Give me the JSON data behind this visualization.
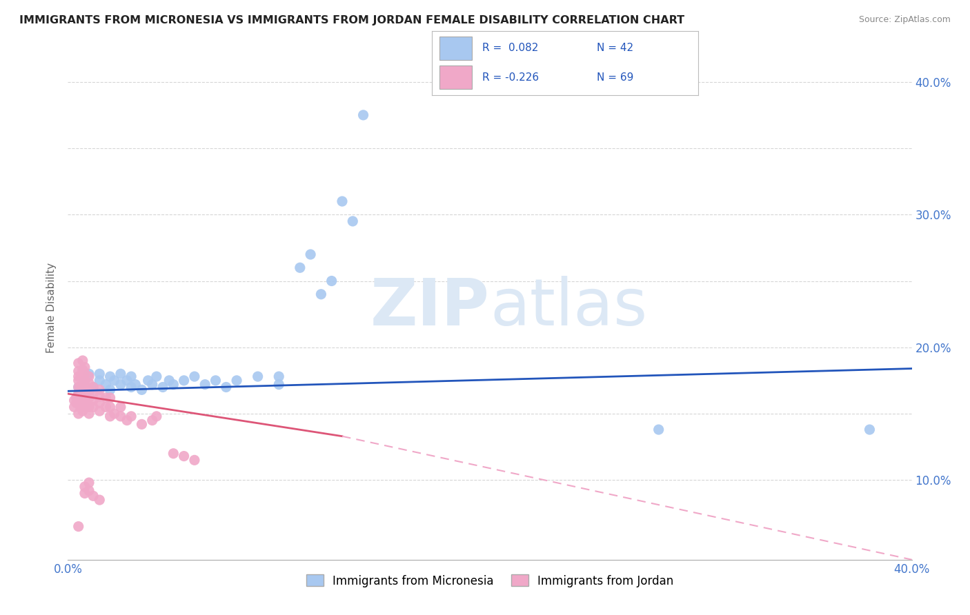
{
  "title": "IMMIGRANTS FROM MICRONESIA VS IMMIGRANTS FROM JORDAN FEMALE DISABILITY CORRELATION CHART",
  "source": "Source: ZipAtlas.com",
  "ylabel": "Female Disability",
  "xlim": [
    0.0,
    0.4
  ],
  "ylim": [
    0.04,
    0.42
  ],
  "xticks": [
    0.0,
    0.05,
    0.1,
    0.15,
    0.2,
    0.25,
    0.3,
    0.35,
    0.4
  ],
  "yticks": [
    0.1,
    0.15,
    0.2,
    0.25,
    0.3,
    0.35,
    0.4
  ],
  "blue_color": "#a8c8f0",
  "pink_color": "#f0a8c8",
  "blue_line_color": "#2255bb",
  "pink_line_color": "#dd5577",
  "pink_dash_color": "#f0a8c8",
  "blue_scatter": [
    [
      0.005,
      0.17
    ],
    [
      0.008,
      0.175
    ],
    [
      0.01,
      0.165
    ],
    [
      0.01,
      0.18
    ],
    [
      0.012,
      0.17
    ],
    [
      0.015,
      0.175
    ],
    [
      0.015,
      0.18
    ],
    [
      0.018,
      0.172
    ],
    [
      0.02,
      0.168
    ],
    [
      0.02,
      0.178
    ],
    [
      0.022,
      0.175
    ],
    [
      0.025,
      0.172
    ],
    [
      0.025,
      0.18
    ],
    [
      0.028,
      0.175
    ],
    [
      0.03,
      0.17
    ],
    [
      0.03,
      0.178
    ],
    [
      0.032,
      0.172
    ],
    [
      0.035,
      0.168
    ],
    [
      0.038,
      0.175
    ],
    [
      0.04,
      0.172
    ],
    [
      0.042,
      0.178
    ],
    [
      0.045,
      0.17
    ],
    [
      0.048,
      0.175
    ],
    [
      0.05,
      0.172
    ],
    [
      0.055,
      0.175
    ],
    [
      0.06,
      0.178
    ],
    [
      0.065,
      0.172
    ],
    [
      0.07,
      0.175
    ],
    [
      0.075,
      0.17
    ],
    [
      0.08,
      0.175
    ],
    [
      0.09,
      0.178
    ],
    [
      0.1,
      0.172
    ],
    [
      0.1,
      0.178
    ],
    [
      0.11,
      0.26
    ],
    [
      0.115,
      0.27
    ],
    [
      0.12,
      0.24
    ],
    [
      0.125,
      0.25
    ],
    [
      0.13,
      0.31
    ],
    [
      0.135,
      0.295
    ],
    [
      0.14,
      0.375
    ],
    [
      0.28,
      0.138
    ],
    [
      0.38,
      0.138
    ]
  ],
  "pink_scatter": [
    [
      0.003,
      0.155
    ],
    [
      0.003,
      0.16
    ],
    [
      0.004,
      0.158
    ],
    [
      0.004,
      0.162
    ],
    [
      0.005,
      0.15
    ],
    [
      0.005,
      0.158
    ],
    [
      0.005,
      0.165
    ],
    [
      0.005,
      0.17
    ],
    [
      0.005,
      0.175
    ],
    [
      0.005,
      0.178
    ],
    [
      0.005,
      0.182
    ],
    [
      0.005,
      0.188
    ],
    [
      0.006,
      0.155
    ],
    [
      0.006,
      0.16
    ],
    [
      0.006,
      0.165
    ],
    [
      0.006,
      0.17
    ],
    [
      0.007,
      0.152
    ],
    [
      0.007,
      0.158
    ],
    [
      0.007,
      0.163
    ],
    [
      0.007,
      0.168
    ],
    [
      0.007,
      0.172
    ],
    [
      0.007,
      0.178
    ],
    [
      0.007,
      0.183
    ],
    [
      0.007,
      0.19
    ],
    [
      0.008,
      0.155
    ],
    [
      0.008,
      0.16
    ],
    [
      0.008,
      0.165
    ],
    [
      0.008,
      0.17
    ],
    [
      0.008,
      0.175
    ],
    [
      0.008,
      0.18
    ],
    [
      0.008,
      0.185
    ],
    [
      0.009,
      0.158
    ],
    [
      0.009,
      0.163
    ],
    [
      0.009,
      0.168
    ],
    [
      0.01,
      0.15
    ],
    [
      0.01,
      0.155
    ],
    [
      0.01,
      0.162
    ],
    [
      0.01,
      0.168
    ],
    [
      0.01,
      0.173
    ],
    [
      0.01,
      0.178
    ],
    [
      0.012,
      0.155
    ],
    [
      0.012,
      0.16
    ],
    [
      0.012,
      0.165
    ],
    [
      0.012,
      0.17
    ],
    [
      0.015,
      0.152
    ],
    [
      0.015,
      0.158
    ],
    [
      0.015,
      0.163
    ],
    [
      0.015,
      0.168
    ],
    [
      0.018,
      0.155
    ],
    [
      0.018,
      0.162
    ],
    [
      0.02,
      0.148
    ],
    [
      0.02,
      0.155
    ],
    [
      0.02,
      0.162
    ],
    [
      0.022,
      0.15
    ],
    [
      0.025,
      0.148
    ],
    [
      0.025,
      0.155
    ],
    [
      0.028,
      0.145
    ],
    [
      0.03,
      0.148
    ],
    [
      0.035,
      0.142
    ],
    [
      0.04,
      0.145
    ],
    [
      0.042,
      0.148
    ],
    [
      0.05,
      0.12
    ],
    [
      0.055,
      0.118
    ],
    [
      0.06,
      0.115
    ],
    [
      0.008,
      0.09
    ],
    [
      0.008,
      0.095
    ],
    [
      0.01,
      0.092
    ],
    [
      0.01,
      0.098
    ],
    [
      0.012,
      0.088
    ],
    [
      0.015,
      0.085
    ],
    [
      0.005,
      0.065
    ]
  ],
  "background_color": "#ffffff",
  "grid_color": "#cccccc"
}
